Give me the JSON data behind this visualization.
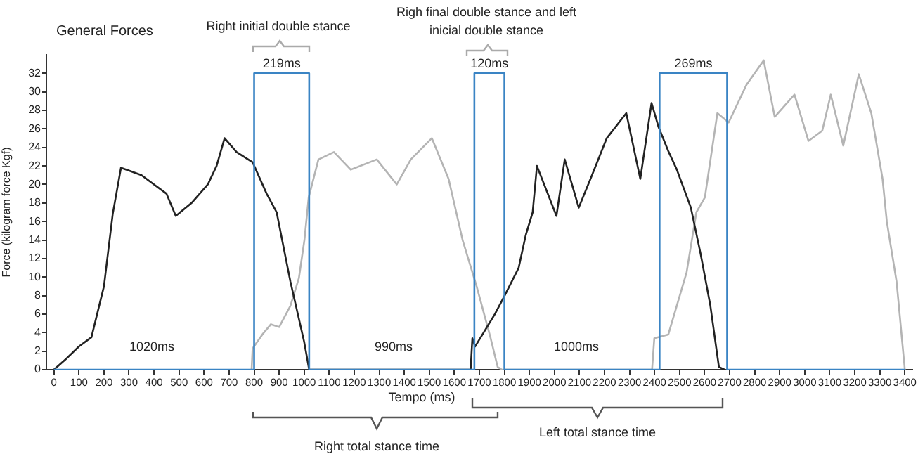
{
  "chart_data": {
    "type": "line",
    "title": "General Forces",
    "xlabel": "Tempo (ms)",
    "ylabel": "Force (kilogram force Kgf)",
    "xlim": [
      -30,
      3430
    ],
    "ylim": [
      0,
      34
    ],
    "xticks": [
      0,
      100,
      200,
      300,
      400,
      500,
      600,
      700,
      800,
      900,
      1000,
      1100,
      1200,
      1300,
      1400,
      1500,
      1600,
      1700,
      1800,
      1900,
      2000,
      2100,
      2200,
      2300,
      2400,
      2500,
      2600,
      2700,
      2800,
      2900,
      3000,
      3100,
      3200,
      3300,
      3400
    ],
    "yticks": [
      0,
      2,
      4,
      6,
      8,
      10,
      12,
      14,
      16,
      18,
      20,
      22,
      24,
      26,
      28,
      30,
      32
    ],
    "grid": false,
    "legend": false,
    "marker": "none",
    "line_style": "solid",
    "series": [
      {
        "color": "#3a84c4",
        "x": [
          0,
          800,
          800,
          1020,
          1020,
          1680,
          1680,
          1800,
          1800,
          2420,
          2420,
          2690,
          2690,
          3400
        ],
        "values": [
          0,
          0,
          32,
          32,
          0,
          0,
          32,
          32,
          0,
          0,
          32,
          32,
          0,
          0
        ]
      },
      {
        "color": "#222222",
        "x": [
          0,
          50,
          100,
          150,
          200,
          235,
          268,
          300,
          350,
          400,
          450,
          487,
          550,
          615,
          650,
          682,
          730,
          794,
          850,
          890,
          945,
          1000,
          1020,
          1665,
          1672,
          1683,
          1762,
          1801,
          1857,
          1885,
          1913,
          1930,
          2008,
          2041,
          2097,
          2150,
          2209,
          2287,
          2343,
          2388,
          2416,
          2455,
          2489,
          2545,
          2584,
          2623,
          2657,
          2680
        ],
        "values": [
          0,
          1.2,
          2.5,
          3.5,
          9,
          16.8,
          21.8,
          21.5,
          21,
          20,
          19,
          16.6,
          18,
          20,
          22,
          25,
          23.5,
          22.4,
          19,
          17,
          9.5,
          3,
          0,
          0,
          3.4,
          2.5,
          6,
          8,
          11,
          14.5,
          17,
          22,
          16.6,
          22.7,
          17.5,
          21,
          25,
          27.7,
          20.6,
          28.8,
          26.2,
          23.6,
          21.6,
          17.5,
          12.5,
          6.9,
          0.3,
          0
        ]
      },
      {
        "color": "#b4b4b4",
        "x": [
          790,
          794,
          833,
          867,
          900,
          945,
          979,
          1001,
          1018,
          1057,
          1119,
          1186,
          1290,
          1370,
          1426,
          1510,
          1577,
          1633,
          1689,
          1745,
          1773,
          1790,
          2390,
          2399,
          2455,
          2528,
          2567,
          2601,
          2651,
          2696,
          2768,
          2836,
          2880,
          2959,
          3015,
          3070,
          3104,
          3154,
          3216,
          3266,
          3311,
          3328,
          3367,
          3400
        ],
        "values": [
          0,
          2.3,
          3.8,
          4.9,
          4.6,
          6.9,
          9.9,
          14,
          18.6,
          22.7,
          23.5,
          21.6,
          22.7,
          20,
          22.7,
          25,
          20.6,
          14,
          9,
          3.4,
          0.3,
          0,
          0,
          3.4,
          3.8,
          10.5,
          17,
          18.6,
          27.7,
          26.7,
          30.8,
          33.4,
          27.3,
          29.7,
          24.7,
          25.8,
          29.7,
          24.2,
          31.9,
          27.7,
          20.6,
          16,
          9.5,
          0
        ]
      }
    ],
    "annotations": [
      {
        "text": "219ms",
        "x": 910,
        "y": 32
      },
      {
        "text": "120ms",
        "x": 1740,
        "y": 32
      },
      {
        "text": "269ms",
        "x": 2555,
        "y": 32
      },
      "1020ms",
      "990ms",
      "1000ms",
      "Right initial double stance",
      "Righ final double stance and left inicial double stance",
      "Right total stance time",
      "Left total stance time"
    ]
  }
}
